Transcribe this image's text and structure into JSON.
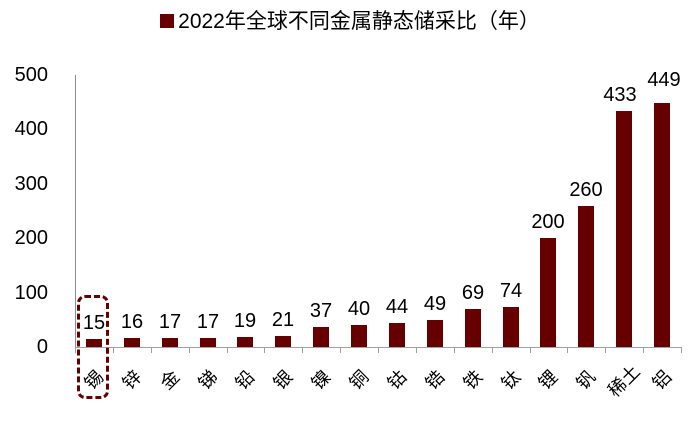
{
  "chart_data": {
    "type": "bar",
    "title": "2022年全球不同金属静态储采比（年）",
    "legend": [
      {
        "name": "2022年全球不同金属静态储采比（年）",
        "color": "#660000"
      }
    ],
    "legend_position": "top",
    "categories": [
      "锡",
      "锌",
      "金",
      "锑",
      "铅",
      "银",
      "镍",
      "铜",
      "钴",
      "锆",
      "铁",
      "钛",
      "锂",
      "钒",
      "稀土",
      "铝"
    ],
    "values": [
      15,
      16,
      17,
      17,
      19,
      21,
      37,
      40,
      44,
      49,
      69,
      74,
      200,
      260,
      433,
      449
    ],
    "series": [
      {
        "name": "2022年全球不同金属静态储采比（年）",
        "values": [
          15,
          16,
          17,
          17,
          19,
          21,
          37,
          40,
          44,
          49,
          69,
          74,
          200,
          260,
          433,
          449
        ]
      }
    ],
    "xlabel": "",
    "ylabel": "",
    "ylim": [
      0,
      500
    ],
    "yticks": [
      0,
      100,
      200,
      300,
      400,
      500
    ],
    "grid": false,
    "annotations": [
      {
        "type": "dashed-box",
        "target": "锡"
      }
    ],
    "bar_color": "#660000"
  },
  "yticks": [
    "500",
    "400",
    "300",
    "200",
    "100",
    "0"
  ]
}
